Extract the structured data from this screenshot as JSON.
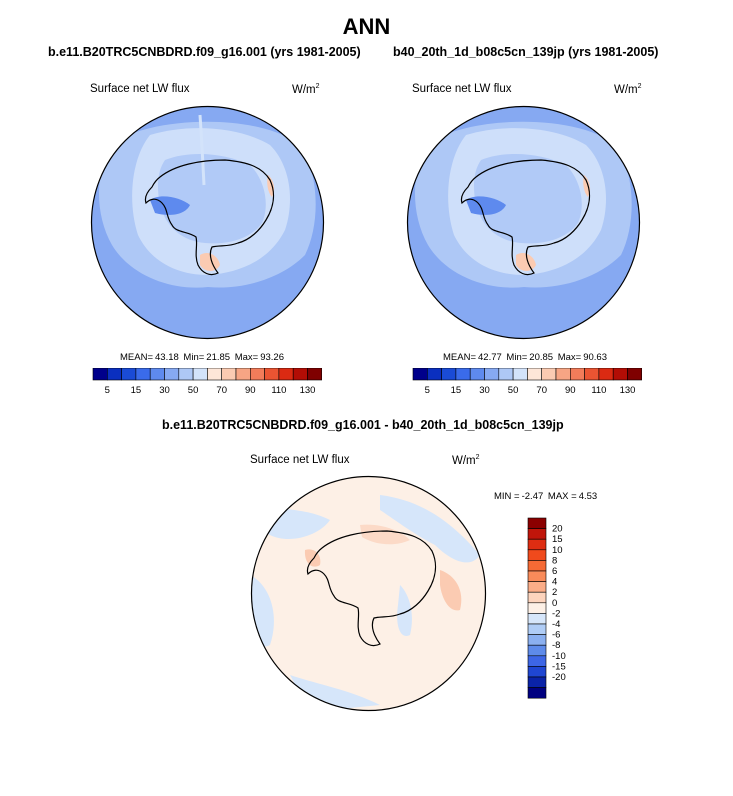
{
  "page_title": "ANN",
  "chart_data": [
    {
      "type": "heatmap",
      "projection": "south-polar-stereographic",
      "title": "b.e11.B20TRC5CNBDRD.f09_g16.001 (yrs 1981-2005)",
      "variable_label": "Surface net LW flux",
      "units": "W/m",
      "units_exp": "2",
      "stats": {
        "mean_label": "MEAN=",
        "mean": "43.18",
        "min_label": "Min=",
        "min": "21.85",
        "max_label": "Max=",
        "max": "93.26"
      },
      "colorbar": {
        "orientation": "horizontal",
        "tick_labels": [
          "5",
          "15",
          "30",
          "50",
          "70",
          "90",
          "110",
          "130"
        ],
        "colors": [
          "#00008b",
          "#0a2fbf",
          "#1a4bd6",
          "#3a6bea",
          "#5e8aee",
          "#86a9f2",
          "#aec8f6",
          "#d3e3fa",
          "#fde6d8",
          "#fbcbb2",
          "#f7a584",
          "#f27c5a",
          "#ea5432",
          "#db2a12",
          "#b30d05",
          "#7f0000"
        ]
      }
    },
    {
      "type": "heatmap",
      "projection": "south-polar-stereographic",
      "title": "b40_20th_1d_b08c5cn_139jp (yrs 1981-2005)",
      "variable_label": "Surface net LW flux",
      "units": "W/m",
      "units_exp": "2",
      "stats": {
        "mean_label": "MEAN=",
        "mean": "42.77",
        "min_label": "Min=",
        "min": "20.85",
        "max_label": "Max=",
        "max": "90.63"
      },
      "colorbar": {
        "orientation": "horizontal",
        "tick_labels": [
          "5",
          "15",
          "30",
          "50",
          "70",
          "90",
          "110",
          "130"
        ],
        "colors": [
          "#00008b",
          "#0a2fbf",
          "#1a4bd6",
          "#3a6bea",
          "#5e8aee",
          "#86a9f2",
          "#aec8f6",
          "#d3e3fa",
          "#fde6d8",
          "#fbcbb2",
          "#f7a584",
          "#f27c5a",
          "#ea5432",
          "#db2a12",
          "#b30d05",
          "#7f0000"
        ]
      }
    },
    {
      "type": "heatmap",
      "projection": "south-polar-stereographic",
      "title": "b.e11.B20TRC5CNBDRD.f09_g16.001 - b40_20th_1d_b08c5cn_139jp",
      "variable_label": "Surface net LW flux",
      "units": "W/m",
      "units_exp": "2",
      "stats": {
        "min_label": "MIN =",
        "min": "-2.47",
        "max_label": "MAX =",
        "max": "4.53"
      },
      "colorbar": {
        "orientation": "vertical",
        "tick_labels": [
          "20",
          "15",
          "10",
          "8",
          "6",
          "4",
          "2",
          "0",
          "-2",
          "-4",
          "-6",
          "-8",
          "-10",
          "-15",
          "-20"
        ],
        "colors": [
          "#8b0000",
          "#c0150a",
          "#de2d12",
          "#f04a1c",
          "#f66a35",
          "#f98b5a",
          "#fbad88",
          "#fdd4bd",
          "#fdf0e6",
          "#d6e6fa",
          "#b0cdf6",
          "#8bb0f0",
          "#5e8bea",
          "#3d66e6",
          "#1f46d2",
          "#0a23a8",
          "#000080"
        ]
      }
    }
  ]
}
